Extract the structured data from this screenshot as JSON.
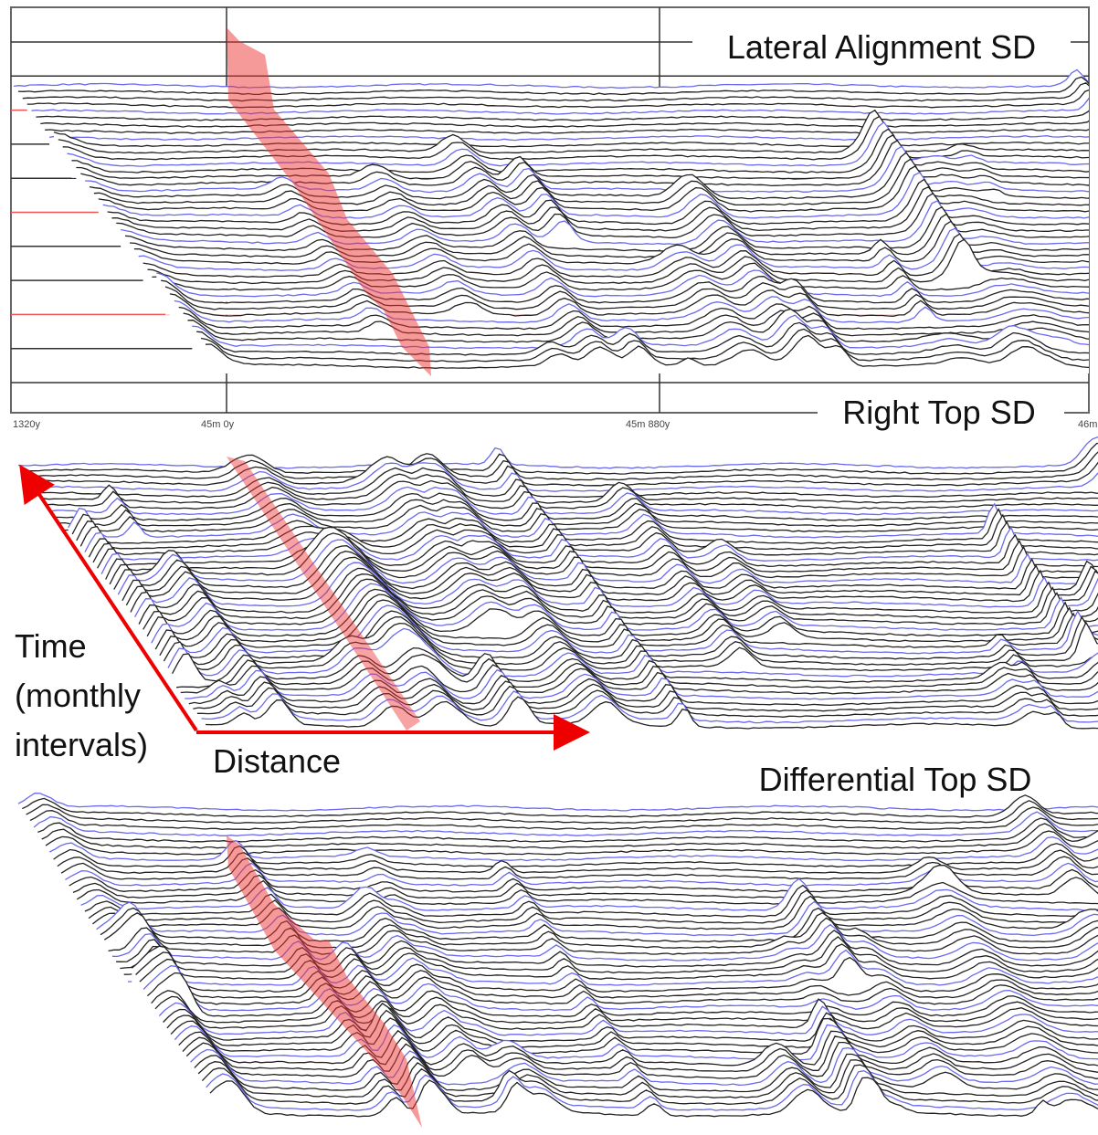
{
  "panels": [
    {
      "title": "Lateral Alignment SD",
      "axis_labels": [
        "1320y",
        "45m 0y",
        "45m 880y",
        "46m"
      ]
    },
    {
      "title": "Right Top SD"
    },
    {
      "title": "Differential Top SD"
    }
  ],
  "annotations": {
    "time_label": [
      "Time",
      "(monthly",
      "intervals)"
    ],
    "distance_label": "Distance"
  }
}
